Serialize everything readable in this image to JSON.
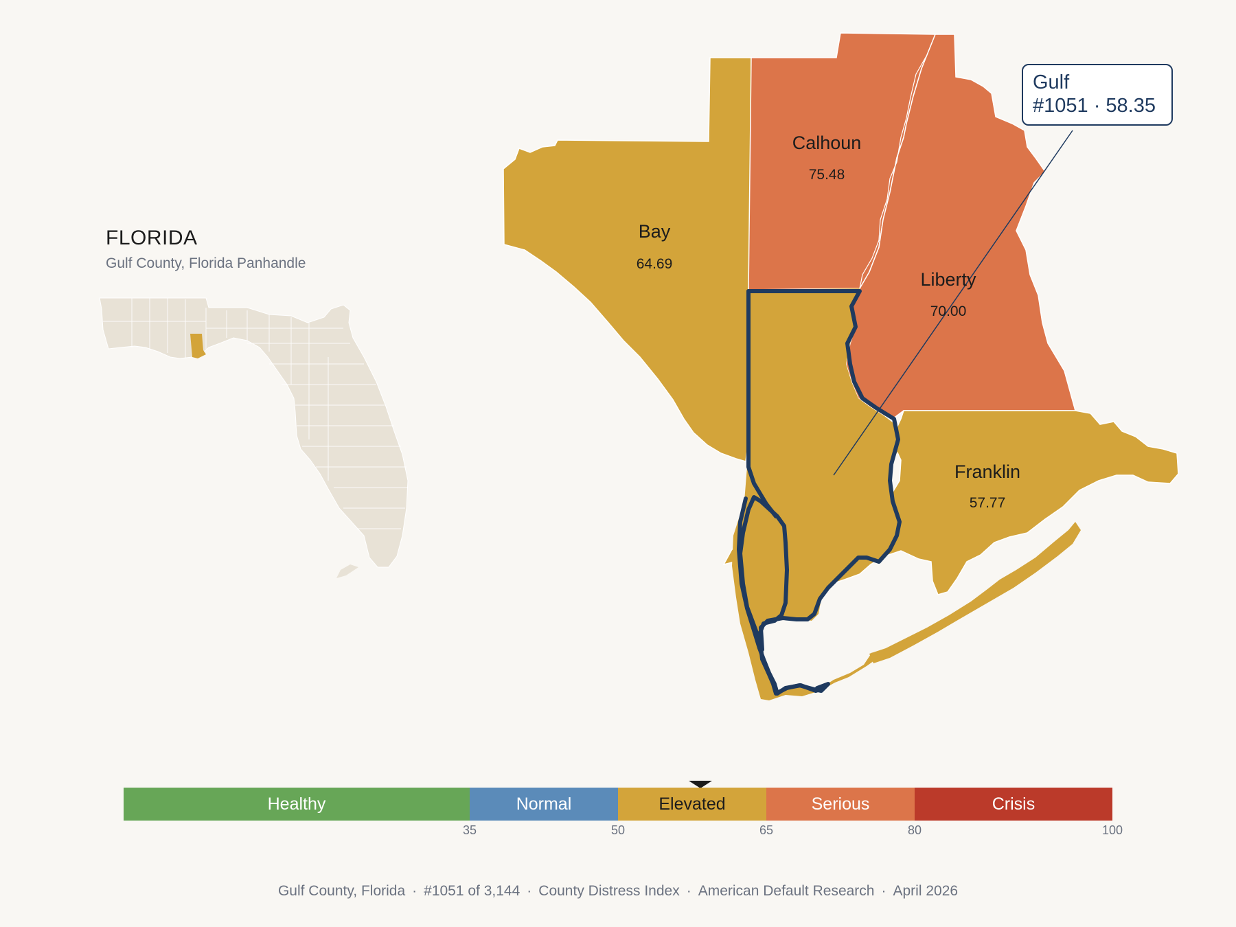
{
  "header": {
    "state": "FLORIDA",
    "subtitle": "Gulf County, Florida Panhandle"
  },
  "colors": {
    "healthy": "#67a657",
    "normal": "#5b8bb9",
    "elevated": "#d3a43a",
    "serious": "#dc754a",
    "crisis": "#bb3a2a",
    "highlight_outline": "#1f3a5f",
    "inset_land": "#e8e2d6",
    "background": "#f9f7f3"
  },
  "counties": [
    {
      "name": "Bay",
      "score": "64.69",
      "tier": "Elevated"
    },
    {
      "name": "Calhoun",
      "score": "75.48",
      "tier": "Serious"
    },
    {
      "name": "Liberty",
      "score": "70.00",
      "tier": "Serious"
    },
    {
      "name": "Franklin",
      "score": "57.77",
      "tier": "Elevated"
    },
    {
      "name": "Gulf",
      "score": "58.35",
      "tier": "Elevated",
      "highlighted": true
    }
  ],
  "callout": {
    "county": "Gulf",
    "detail": "#1051 · 58.35"
  },
  "scale": {
    "segments": [
      {
        "label": "Healthy",
        "from": 0,
        "to": 35
      },
      {
        "label": "Normal",
        "from": 35,
        "to": 50
      },
      {
        "label": "Elevated",
        "from": 50,
        "to": 65
      },
      {
        "label": "Serious",
        "from": 65,
        "to": 80
      },
      {
        "label": "Crisis",
        "from": 80,
        "to": 100
      }
    ],
    "ticks": [
      "35",
      "50",
      "65",
      "80",
      "100"
    ],
    "marker_value": 58.35
  },
  "footer": {
    "county": "Gulf County, Florida",
    "rank": "#1051 of 3,144",
    "index": "County Distress Index",
    "source": "American Default Research",
    "date": "April 2026"
  }
}
